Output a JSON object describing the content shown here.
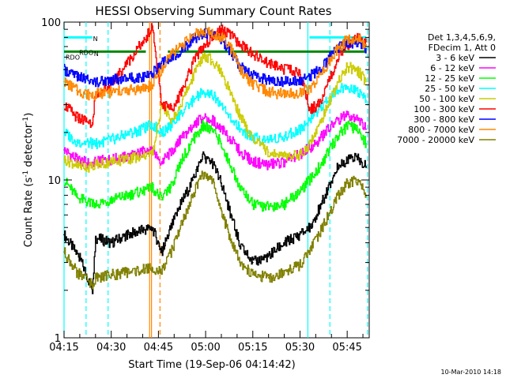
{
  "chart_data": {
    "type": "line",
    "title": "HESSI Observing Summary Count Rates",
    "xlabel": "Start Time (19-Sep-06 04:14:42)",
    "ylabel": "Count Rate (s",
    "ylabel_sup": "-1",
    "ylabel_tail": " detector",
    "ylabel_sup2": "-1",
    "ylabel_close": ")",
    "yscale": "log",
    "ylim": [
      1,
      100
    ],
    "y_ticks": [
      "1",
      "10",
      "100"
    ],
    "x_range_min": [
      255,
      352
    ],
    "x_ticks": [
      {
        "min": 255,
        "label": "04:15"
      },
      {
        "min": 270,
        "label": "04:30"
      },
      {
        "min": 285,
        "label": "04:45"
      },
      {
        "min": 300,
        "label": "05:00"
      },
      {
        "min": 315,
        "label": "05:15"
      },
      {
        "min": 330,
        "label": "05:30"
      },
      {
        "min": 345,
        "label": "05:45"
      }
    ],
    "legend_header": [
      "Det 1,3,4,5,6,9,",
      "FDecim 1, Att 0"
    ],
    "legend_position": "right",
    "flag_labels": [
      "RDO",
      "N",
      "RDO",
      "N"
    ],
    "series": [
      {
        "name": "3 - 6 keV",
        "color": "#000000",
        "x": [
          255,
          260,
          264,
          265,
          270,
          275,
          280,
          283,
          286,
          289,
          292,
          296,
          299,
          302,
          305,
          308,
          311,
          315,
          320,
          325,
          330,
          333,
          336,
          339,
          342,
          345,
          348,
          351
        ],
        "y": [
          4.5,
          3.2,
          2.0,
          4.3,
          4.0,
          4.5,
          4.8,
          5.0,
          3.5,
          5.0,
          7.0,
          10.0,
          14.0,
          13.0,
          9.5,
          6.0,
          3.8,
          3.0,
          3.3,
          4.0,
          4.5,
          5.0,
          6.5,
          9.0,
          12.0,
          13.5,
          14.0,
          12.0
        ]
      },
      {
        "name": "6 - 12 keV",
        "color": "#ff00ff",
        "x": [
          255,
          259,
          264,
          265,
          270,
          275,
          280,
          283,
          286,
          289,
          292,
          296,
          299,
          302,
          305,
          308,
          311,
          315,
          320,
          325,
          330,
          333,
          336,
          339,
          342,
          345,
          348,
          351
        ],
        "y": [
          15.5,
          13.5,
          12.5,
          13.0,
          13.5,
          14.0,
          15.0,
          15.5,
          13.0,
          15.0,
          18.0,
          22.0,
          25.0,
          24.0,
          21.0,
          18.0,
          15.0,
          13.0,
          12.5,
          13.0,
          14.5,
          16.0,
          18.0,
          21.0,
          24.0,
          26.0,
          25.0,
          21.0
        ]
      },
      {
        "name": "12 - 25 keV",
        "color": "#00ff00",
        "x": [
          255,
          259,
          264,
          265,
          270,
          275,
          280,
          283,
          286,
          289,
          292,
          296,
          299,
          302,
          305,
          308,
          311,
          315,
          320,
          325,
          330,
          333,
          336,
          339,
          342,
          345,
          348,
          351
        ],
        "y": [
          10.0,
          7.8,
          7.0,
          7.0,
          7.5,
          8.0,
          8.5,
          9.0,
          7.5,
          9.0,
          13.0,
          18.0,
          22.0,
          21.0,
          17.0,
          12.0,
          9.0,
          7.0,
          6.8,
          7.0,
          8.5,
          10.0,
          12.0,
          15.0,
          19.0,
          22.0,
          21.0,
          17.0
        ]
      },
      {
        "name": "25 - 50 keV",
        "color": "#00ffff",
        "x": [
          255,
          259,
          264,
          265,
          270,
          275,
          280,
          283,
          286,
          289,
          292,
          296,
          299,
          302,
          305,
          308,
          311,
          315,
          320,
          325,
          330,
          333,
          336,
          339,
          342,
          345,
          348,
          351
        ],
        "y": [
          20.0,
          17.5,
          17.0,
          17.0,
          18.0,
          19.5,
          21.0,
          22.5,
          20.0,
          22.0,
          26.0,
          32.0,
          36.0,
          35.0,
          30.0,
          25.0,
          21.0,
          18.5,
          18.0,
          19.0,
          21.0,
          24.0,
          28.0,
          33.0,
          37.0,
          39.0,
          37.0,
          32.0
        ]
      },
      {
        "name": "50 - 100 keV",
        "color": "#cccc00",
        "x": [
          255,
          259,
          264,
          265,
          270,
          275,
          280,
          283,
          286,
          289,
          292,
          296,
          299,
          302,
          305,
          308,
          311,
          315,
          320,
          325,
          330,
          333,
          336,
          339,
          342,
          345,
          348,
          351
        ],
        "y": [
          13.5,
          12.5,
          12.0,
          12.5,
          13.0,
          13.5,
          14.0,
          14.5,
          30.0,
          24.0,
          30.0,
          45.0,
          60.0,
          58.0,
          48.0,
          35.0,
          25.0,
          18.0,
          15.0,
          14.0,
          14.5,
          17.0,
          22.0,
          30.0,
          42.0,
          52.0,
          50.0,
          42.0
        ]
      },
      {
        "name": "100 - 300 keV",
        "color": "#ff0000",
        "x": [
          255,
          259,
          264,
          265,
          270,
          275,
          280,
          283,
          286,
          289,
          292,
          296,
          299,
          302,
          305,
          308,
          311,
          315,
          320,
          325,
          330,
          333,
          336,
          339,
          342,
          345,
          348,
          351
        ],
        "y": [
          30.0,
          25.0,
          23.0,
          35.0,
          40.0,
          55.0,
          75.0,
          92.0,
          30.0,
          28.0,
          35.0,
          55.0,
          70.0,
          80.0,
          90.0,
          82.0,
          72.0,
          62.0,
          55.0,
          50.0,
          48.0,
          28.0,
          30.0,
          42.0,
          58.0,
          70.0,
          80.0,
          75.0
        ]
      },
      {
        "name": "300 - 800 keV",
        "color": "#0000ff",
        "x": [
          255,
          259,
          264,
          265,
          270,
          275,
          280,
          283,
          286,
          289,
          292,
          296,
          299,
          302,
          305,
          308,
          311,
          315,
          320,
          325,
          330,
          333,
          336,
          339,
          342,
          345,
          348,
          351
        ],
        "y": [
          50.0,
          45.0,
          42.0,
          42.0,
          43.0,
          44.0,
          45.0,
          47.0,
          55.0,
          60.0,
          65.0,
          78.0,
          85.0,
          84.0,
          78.0,
          65.0,
          52.0,
          46.0,
          43.0,
          42.0,
          43.0,
          45.0,
          50.0,
          58.0,
          68.0,
          75.0,
          73.0,
          68.0
        ]
      },
      {
        "name": "800 - 7000 keV",
        "color": "#ff8800",
        "x": [
          255,
          259,
          264,
          265,
          270,
          275,
          280,
          283,
          286,
          289,
          292,
          296,
          299,
          302,
          305,
          308,
          311,
          315,
          320,
          325,
          330,
          333,
          336,
          339,
          342,
          345,
          348,
          351
        ],
        "y": [
          42.0,
          37.0,
          34.0,
          35.0,
          36.0,
          37.0,
          38.0,
          40.0,
          50.0,
          62.0,
          70.0,
          82.0,
          88.0,
          86.0,
          80.0,
          68.0,
          50.0,
          40.0,
          36.0,
          35.0,
          36.0,
          38.0,
          45.0,
          55.0,
          68.0,
          78.0,
          78.0,
          72.0
        ]
      },
      {
        "name": "7000 - 20000 keV",
        "color": "#808000",
        "x": [
          255,
          259,
          264,
          265,
          270,
          275,
          280,
          283,
          286,
          289,
          292,
          296,
          299,
          302,
          305,
          308,
          311,
          315,
          320,
          325,
          330,
          333,
          336,
          339,
          342,
          345,
          348,
          351
        ],
        "y": [
          3.5,
          2.6,
          2.2,
          2.4,
          2.5,
          2.6,
          2.7,
          2.8,
          2.6,
          3.5,
          5.0,
          8.0,
          11.0,
          10.0,
          6.5,
          4.0,
          3.0,
          2.5,
          2.4,
          2.6,
          2.9,
          3.5,
          4.5,
          6.0,
          8.0,
          9.5,
          10.0,
          8.0
        ]
      }
    ],
    "flags": [
      {
        "name": "SAA",
        "color": "#00ffff",
        "level": 80,
        "x": [
          255,
          264
        ],
        "x2": [
          333,
          351
        ]
      },
      {
        "name": "Night",
        "color": "#008800",
        "level": 65,
        "x": [
          255,
          281
        ],
        "x2": [
          288,
          351
        ]
      }
    ],
    "vertical_markers": [
      {
        "min": 255,
        "color": "#00ffff",
        "style": "solid"
      },
      {
        "min": 262,
        "color": "#00ffff",
        "style": "dash"
      },
      {
        "min": 269,
        "color": "#00ffff",
        "style": "dash"
      },
      {
        "min": 332.5,
        "color": "#00ffff",
        "style": "solid"
      },
      {
        "min": 339.5,
        "color": "#00ffff",
        "style": "dash"
      },
      {
        "min": 351.5,
        "color": "#00ffff",
        "style": "dash"
      },
      {
        "min": 282.2,
        "color": "#ff8800",
        "style": "solid"
      },
      {
        "min": 282.8,
        "color": "#ff8800",
        "style": "solid"
      },
      {
        "min": 285.5,
        "color": "#ff8800",
        "style": "dash"
      }
    ]
  },
  "footer": {
    "date": "10-Mar-2010 14:18"
  }
}
